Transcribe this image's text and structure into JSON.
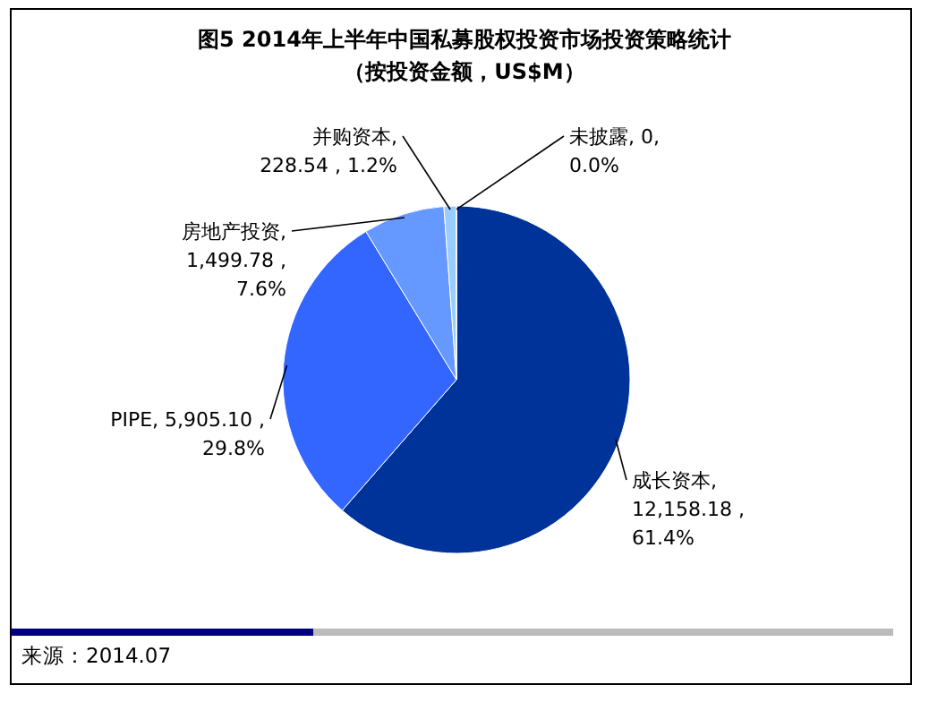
{
  "chart_data": {
    "type": "pie",
    "title": "图5 2014年上半年中国私募股权投资市场投资策略统计",
    "subtitle": "（按投资金额，US$M）",
    "categories": [
      "成长资本",
      "PIPE",
      "房地产投资",
      "并购资本",
      "未披露"
    ],
    "values": [
      12158.18,
      5905.1,
      1499.78,
      228.54,
      0
    ],
    "colors": [
      "#003399",
      "#3366ff",
      "#6699ff",
      "#99ccff",
      "#ccddff"
    ],
    "value_labels": [
      ", 12,158.18 , 61.4%",
      ", 5,905.10 , 29.8%",
      ", 1,499.78 , 7.6%",
      ", 228.54 , 1.2%",
      ", 0, 0.0%"
    ],
    "annotations": [
      "来源：2014.07"
    ]
  }
}
